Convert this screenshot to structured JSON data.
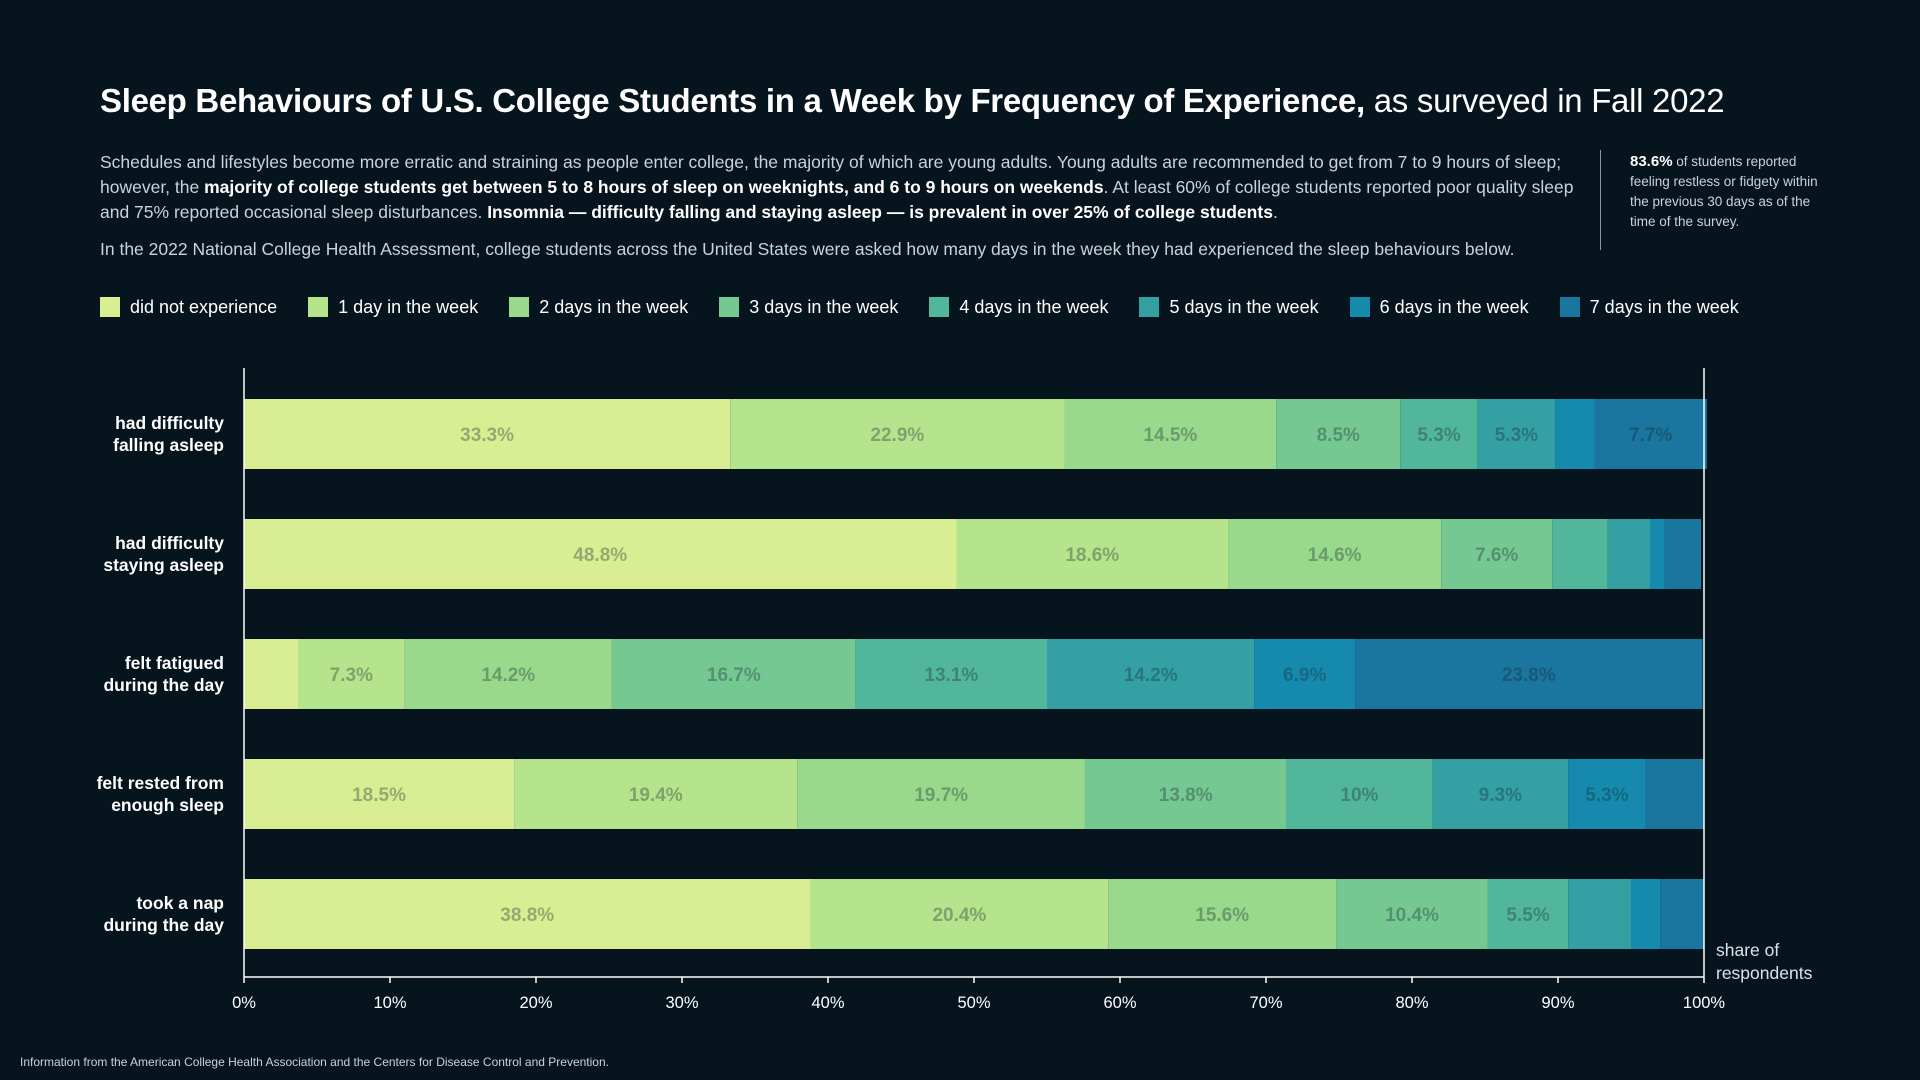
{
  "header": {
    "title_main": "Sleep Behaviours of U.S. College Students in a Week by Frequency of Experience,",
    "title_sub": " as surveyed in Fall 2022"
  },
  "description": {
    "p1_a": "Schedules and lifestyles become more erratic and straining as people enter college, the majority of which are young adults. Young adults are recommended to get from 7 to 9 hours of sleep; however, the ",
    "p1_b": "majority of college students get between 5 to 8 hours of sleep on weeknights, and 6 to 9 hours on weekends",
    "p1_c": ". At least 60% of college students reported poor quality sleep and 75% reported occasional sleep disturbances. ",
    "p1_d": "Insomnia — difficulty falling and staying asleep — is prevalent in over 25% of college students",
    "p1_e": ".",
    "p2": "In the 2022 National College Health Assessment, college students across the United States were asked how many days in the week they had experienced the sleep behaviours below."
  },
  "callout": {
    "stat": "83.6%",
    "text": " of students reported feeling restless or fidgety within the previous 30 days as of the time of the survey."
  },
  "footer": {
    "source": "Information from the American College Health Association and the Centers for Disease Control and Prevention."
  },
  "chart_data": {
    "type": "bar",
    "orientation": "horizontal",
    "stacked": true,
    "categories": [
      "had difficulty falling asleep",
      "had difficulty staying asleep",
      "felt fatigued during the day",
      "felt rested from enough sleep",
      "took a nap during the day"
    ],
    "category_label_lines": [
      [
        "had difficulty",
        "falling asleep"
      ],
      [
        "had difficulty",
        "staying asleep"
      ],
      [
        "felt fatigued",
        "during the day"
      ],
      [
        "felt rested from",
        "enough sleep"
      ],
      [
        "took a nap",
        "during the day"
      ]
    ],
    "series": [
      {
        "name": "did not experience",
        "color": "#d9ed92",
        "values": [
          33.3,
          48.8,
          3.7,
          18.5,
          38.8
        ]
      },
      {
        "name": "1 day in the week",
        "color": "#b5e48c",
        "values": [
          22.9,
          18.6,
          7.3,
          19.4,
          20.4
        ]
      },
      {
        "name": "2 days in the week",
        "color": "#99d98c",
        "values": [
          14.5,
          14.6,
          14.2,
          19.7,
          15.6
        ]
      },
      {
        "name": "3 days in the week",
        "color": "#76c893",
        "values": [
          8.5,
          7.6,
          16.7,
          13.8,
          10.4
        ]
      },
      {
        "name": "4 days in the week",
        "color": "#52b69a",
        "values": [
          5.3,
          3.8,
          13.1,
          10.0,
          5.5
        ]
      },
      {
        "name": "5 days in the week",
        "color": "#34a0a4",
        "values": [
          5.3,
          2.9,
          14.2,
          9.3,
          4.3
        ]
      },
      {
        "name": "6 days in the week",
        "color": "#168aad",
        "values": [
          2.7,
          1.0,
          6.9,
          5.3,
          2.0
        ]
      },
      {
        "name": "7 days in the week",
        "color": "#1a759f",
        "values": [
          7.7,
          2.5,
          23.8,
          4.0,
          3.0
        ]
      }
    ],
    "data_labels": [
      [
        "33.3%",
        "22.9%",
        "14.5%",
        "8.5%",
        "5.3%",
        "5.3%",
        "",
        "7.7%"
      ],
      [
        "48.8%",
        "18.6%",
        "14.6%",
        "7.6%",
        "",
        "",
        "",
        ""
      ],
      [
        "",
        "7.3%",
        "14.2%",
        "16.7%",
        "13.1%",
        "14.2%",
        "6.9%",
        "23.8%"
      ],
      [
        "18.5%",
        "19.4%",
        "19.7%",
        "13.8%",
        "10%",
        "9.3%",
        "5.3%",
        ""
      ],
      [
        "38.8%",
        "20.4%",
        "15.6%",
        "10.4%",
        "5.5%",
        "",
        "",
        ""
      ]
    ],
    "x_ticks": [
      "0%",
      "10%",
      "20%",
      "30%",
      "40%",
      "50%",
      "60%",
      "70%",
      "80%",
      "90%",
      "100%"
    ],
    "xlim": [
      0,
      100
    ],
    "xlabel": "share of respondents",
    "xlabel_lines": [
      "share of",
      "respondents"
    ],
    "legend_placement": "top",
    "grid": false
  }
}
